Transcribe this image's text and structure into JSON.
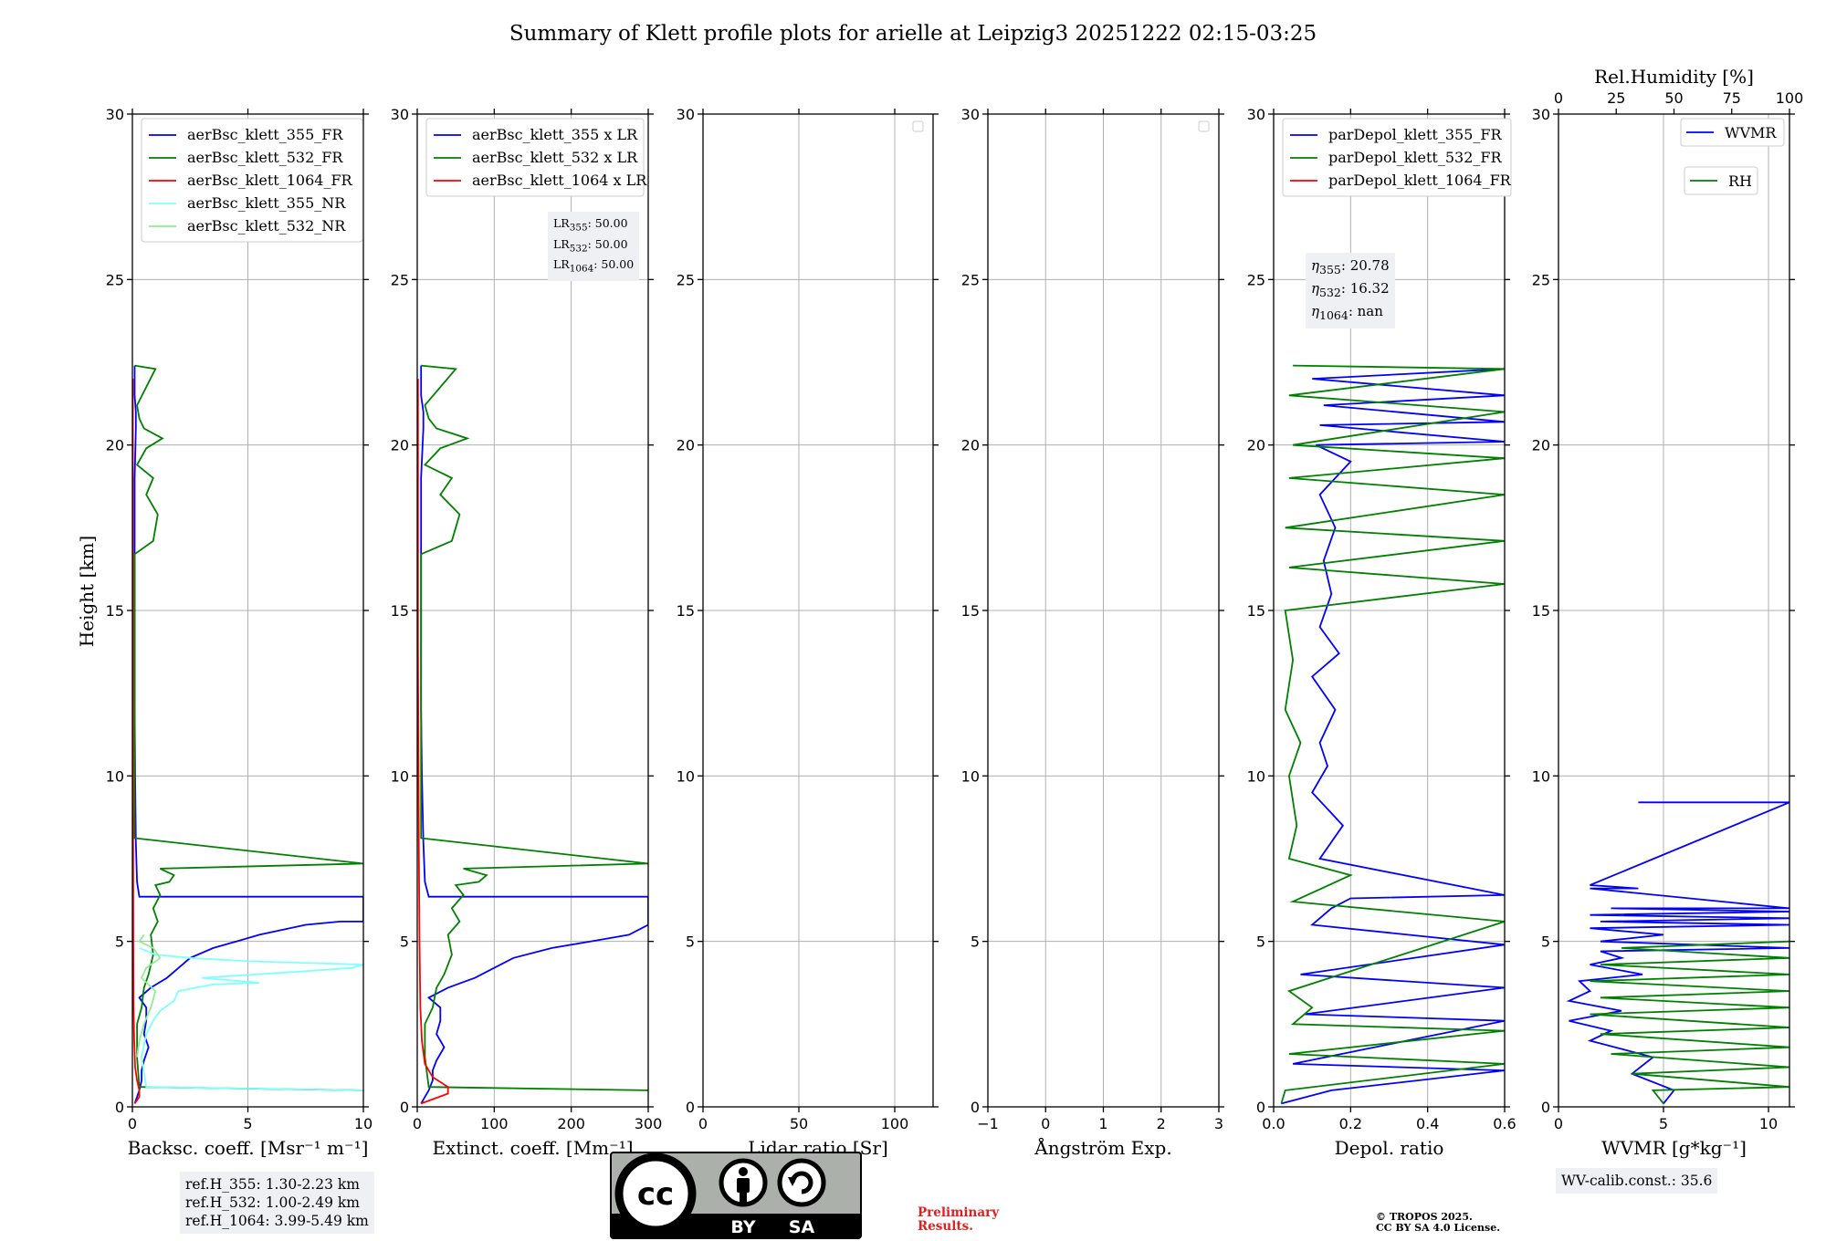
{
  "title": "Summary of Klett profile plots for arielle at Leipzig3 20251222 02:15-03:25",
  "ylabel": "Height [km]",
  "colors": {
    "blue": "#0000ff",
    "green": "#008000",
    "red": "#ff0000",
    "cyan": "#80ffff",
    "lightgreen": "#90ee90",
    "grid": "#b0b0b0",
    "note_bg": "#eef0f4",
    "prelim": "#e02020"
  },
  "chart_data": [
    {
      "type": "line",
      "id": "backscatter",
      "xlabel": "Backsc. coeff. [Msr⁻¹ m⁻¹]",
      "ylabel": "Height [km]",
      "xlim": [
        0,
        10
      ],
      "ylim": [
        0,
        30
      ],
      "xticks": [
        0,
        5,
        10
      ],
      "yticks": [
        0,
        5,
        10,
        15,
        20,
        25,
        30
      ],
      "legend": "top-left",
      "series": [
        {
          "name": "aerBsc_klett_355_FR",
          "color": "#0000ff",
          "x": [
            0.1,
            0.2,
            0.3,
            0.4,
            0.4,
            0.5,
            0.7,
            0.5,
            0.6,
            0.6,
            0.3,
            0.8,
            1.5,
            2.0,
            2.5,
            3.5,
            4.5,
            5.5,
            7.5,
            9,
            10,
            10,
            0.3,
            0.2,
            0.15,
            0.12,
            0.1,
            0.1,
            0.1,
            0.1,
            0.15,
            0.15,
            0.1,
            0.1,
            0.1
          ],
          "y": [
            0.1,
            0.3,
            0.5,
            0.8,
            1.1,
            1.4,
            1.8,
            2.2,
            2.6,
            3.0,
            3.3,
            3.6,
            3.9,
            4.2,
            4.5,
            4.8,
            5.0,
            5.2,
            5.5,
            5.6,
            5.6,
            6.35,
            6.35,
            6.8,
            8,
            10,
            12,
            15,
            17,
            19,
            20.5,
            21,
            21.5,
            22.3,
            22.4
          ]
        },
        {
          "name": "aerBsc_klett_532_FR",
          "color": "#008000",
          "x": [
            10,
            0.3,
            0.2,
            0.2,
            0.4,
            0.5,
            0.7,
            0.9,
            0.8,
            1.1,
            0.9,
            1.2,
            1.0,
            1.6,
            1.8,
            1.2,
            10,
            0.1,
            0.1,
            0.1,
            0.1,
            0.9,
            1.1,
            0.6,
            0.9,
            0.2,
            0.6,
            1.3,
            0.5,
            0.3,
            0.2,
            1.0,
            0.1
          ],
          "y": [
            0.5,
            0.6,
            1.5,
            2.5,
            3.0,
            3.6,
            4.0,
            4.6,
            5.2,
            5.6,
            6.0,
            6.4,
            6.7,
            6.8,
            7.0,
            7.2,
            7.35,
            8.12,
            10,
            14,
            16.7,
            17.1,
            17.9,
            18.5,
            19,
            19.4,
            19.9,
            20.2,
            20.5,
            20.8,
            21.2,
            22.3,
            22.4
          ]
        },
        {
          "name": "aerBsc_klett_1064_FR",
          "color": "#ff0000",
          "x": [
            0.1,
            0.3,
            0.3,
            0.2,
            0.12,
            0.08,
            0.05,
            0.04,
            0.03,
            0.02,
            0.02,
            0.02
          ],
          "y": [
            0.1,
            0.3,
            0.5,
            0.8,
            1.2,
            2,
            3,
            5,
            8,
            12,
            18,
            22
          ]
        },
        {
          "name": "aerBsc_klett_355_NR",
          "color": "#80ffff",
          "x": [
            10,
            0.6,
            0.4,
            0.6,
            0.9,
            1.2,
            1.8,
            2.0,
            3.5,
            5.5,
            3.0,
            7.5,
            9.5,
            10,
            5.0,
            2.5,
            1.0,
            0.3
          ],
          "y": [
            0.5,
            0.6,
            1.5,
            2.2,
            2.6,
            2.9,
            3.2,
            3.5,
            3.7,
            3.75,
            3.9,
            4.1,
            4.2,
            4.3,
            4.4,
            4.5,
            4.6,
            4.8
          ]
        },
        {
          "name": "aerBsc_klett_532_NR",
          "color": "#90ee90",
          "x": [
            0.2,
            0.3,
            0.5,
            0.8,
            1.0,
            0.4,
            0.6,
            1.2,
            0.9,
            0.3,
            0.5
          ],
          "y": [
            1.5,
            2.0,
            2.5,
            3.0,
            3.5,
            3.9,
            4.2,
            4.5,
            4.8,
            5.0,
            5.2
          ]
        }
      ]
    },
    {
      "type": "line",
      "id": "extinction",
      "xlabel": "Extinct. coeff. [Mm⁻¹]",
      "xlim": [
        0,
        300
      ],
      "ylim": [
        0,
        30
      ],
      "xticks": [
        0,
        100,
        200,
        300
      ],
      "yticks": [
        0,
        5,
        10,
        15,
        20,
        25,
        30
      ],
      "legend": "top-left",
      "series": [
        {
          "name": "aerBsc_klett_355 x LR",
          "color": "#0000ff",
          "x": [
            5,
            10,
            15,
            20,
            20,
            25,
            35,
            25,
            30,
            30,
            15,
            40,
            75,
            100,
            125,
            175,
            225,
            275,
            300,
            300,
            300,
            15,
            10,
            8,
            6,
            5,
            5,
            5,
            5,
            8,
            8,
            5,
            5,
            5
          ],
          "y": [
            0.1,
            0.3,
            0.5,
            0.8,
            1.1,
            1.4,
            1.8,
            2.2,
            2.6,
            3.0,
            3.3,
            3.6,
            3.9,
            4.2,
            4.5,
            4.8,
            5.0,
            5.2,
            5.5,
            5.6,
            6.35,
            6.35,
            6.8,
            8,
            10,
            12,
            15,
            17,
            19,
            20.5,
            21,
            21.5,
            22.3,
            22.4
          ]
        },
        {
          "name": "aerBsc_klett_532 x LR",
          "color": "#008000",
          "x": [
            300,
            15,
            10,
            10,
            20,
            25,
            35,
            45,
            40,
            55,
            45,
            60,
            50,
            80,
            90,
            60,
            300,
            5,
            5,
            5,
            5,
            45,
            55,
            30,
            45,
            10,
            30,
            65,
            25,
            15,
            10,
            50,
            5
          ],
          "y": [
            0.5,
            0.6,
            1.5,
            2.5,
            3.0,
            3.6,
            4.0,
            4.6,
            5.2,
            5.6,
            6.0,
            6.4,
            6.7,
            6.8,
            7.0,
            7.2,
            7.35,
            8.12,
            10,
            14,
            16.7,
            17.1,
            17.9,
            18.5,
            19,
            19.4,
            19.9,
            20.2,
            20.5,
            20.8,
            21.2,
            22.3,
            22.4
          ]
        },
        {
          "name": "aerBsc_klett_1064 x LR",
          "color": "#ff0000",
          "x": [
            5,
            40,
            40,
            20,
            10,
            6,
            4,
            3,
            2,
            1,
            1
          ],
          "y": [
            0.1,
            0.4,
            0.6,
            0.9,
            1.3,
            2,
            3,
            5,
            8,
            14,
            22
          ]
        }
      ],
      "annotation": {
        "lr_355": "50.00",
        "lr_532": "50.00",
        "lr_1064": "50.00"
      }
    },
    {
      "type": "line",
      "id": "lidar_ratio",
      "xlabel": "Lidar ratio [Sr]",
      "xlim": [
        0,
        120
      ],
      "ylim": [
        0,
        30
      ],
      "xticks": [
        0,
        50,
        100
      ],
      "yticks": [
        0,
        5,
        10,
        15,
        20,
        25,
        30
      ],
      "legend": "top-right",
      "series": []
    },
    {
      "type": "line",
      "id": "angstrom",
      "xlabel": "Ångström Exp.",
      "xlim": [
        -1,
        3
      ],
      "ylim": [
        0,
        30
      ],
      "xticks": [
        -1,
        0,
        1,
        2,
        3
      ],
      "yticks": [
        0,
        5,
        10,
        15,
        20,
        25,
        30
      ],
      "legend": "top-right",
      "series": []
    },
    {
      "type": "line",
      "id": "depol",
      "xlabel": "Depol. ratio",
      "xlim": [
        0,
        0.6
      ],
      "ylim": [
        0,
        30
      ],
      "xticks": [
        0.0,
        0.2,
        0.4,
        0.6
      ],
      "yticks": [
        0,
        5,
        10,
        15,
        20,
        25,
        30
      ],
      "legend": "top-left",
      "series": [
        {
          "name": "parDepol_klett_355_FR",
          "color": "#0000ff",
          "x": [
            0.02,
            0.15,
            0.6,
            0.05,
            0.6,
            0.08,
            0.6,
            0.07,
            0.6,
            0.1,
            0.15,
            0.2,
            0.6,
            0.12,
            0.18,
            0.1,
            0.14,
            0.12,
            0.16,
            0.1,
            0.17,
            0.12,
            0.15,
            0.13,
            0.16,
            0.12,
            0.2,
            0.11,
            0.6,
            0.12,
            0.6,
            0.13,
            0.6,
            0.1,
            0.6
          ],
          "y": [
            0.1,
            0.5,
            1.1,
            1.3,
            2.6,
            2.8,
            3.6,
            4.0,
            4.9,
            5.5,
            6.0,
            6.3,
            6.4,
            7.5,
            8.5,
            9.5,
            10.3,
            11,
            12,
            13,
            13.7,
            14.5,
            15.5,
            16.5,
            17.5,
            18.5,
            19.5,
            20,
            20.1,
            20.6,
            20.7,
            21.2,
            21.5,
            22.0,
            22.3
          ]
        },
        {
          "name": "parDepol_klett_532_FR",
          "color": "#008000",
          "x": [
            0.02,
            0.03,
            0.6,
            0.04,
            0.6,
            0.05,
            0.1,
            0.04,
            0.6,
            0.05,
            0.2,
            0.04,
            0.06,
            0.04,
            0.07,
            0.03,
            0.05,
            0.03,
            0.6,
            0.04,
            0.6,
            0.03,
            0.6,
            0.04,
            0.6,
            0.05,
            0.6,
            0.04,
            0.6,
            0.05
          ],
          "y": [
            0.1,
            0.5,
            1.3,
            1.6,
            2.3,
            2.5,
            3.0,
            3.5,
            5.6,
            6.2,
            7.0,
            7.5,
            8.5,
            10,
            11,
            12,
            13.5,
            15,
            15.8,
            16.3,
            17.1,
            17.5,
            18.5,
            19,
            19.6,
            20,
            21,
            21.5,
            22.3,
            22.4
          ]
        },
        {
          "name": "parDepol_klett_1064_FR",
          "color": "#ff0000",
          "x": [],
          "y": []
        }
      ],
      "annotation": {
        "eta_355": "20.78",
        "eta_532": "16.32",
        "eta_1064": "nan"
      }
    },
    {
      "type": "line",
      "id": "wvmr",
      "xlabel": "WVMR [g*kg⁻¹]",
      "x2label": "Rel.Humidity [%]",
      "xlim": [
        0,
        11
      ],
      "x2lim": [
        0,
        100
      ],
      "ylim": [
        0,
        30
      ],
      "xticks": [
        0,
        5,
        10
      ],
      "x2ticks": [
        0,
        25,
        50,
        75,
        100
      ],
      "yticks": [
        0,
        5,
        10,
        15,
        20,
        25,
        30
      ],
      "legend": "top-right",
      "series": [
        {
          "name": "WVMR",
          "color": "#0000ff",
          "x": [
            5,
            5.5,
            3.5,
            4.5,
            1.5,
            2.5,
            0.5,
            3,
            0.5,
            1.5,
            1,
            4,
            1.5,
            3,
            2,
            11,
            2,
            5,
            1.5,
            11,
            2,
            11,
            1.5,
            11,
            2.5,
            11,
            1.5,
            3.8,
            1.5,
            11,
            3.8,
            11
          ],
          "y": [
            0.1,
            0.5,
            1.0,
            1.5,
            2.0,
            2.3,
            2.6,
            2.9,
            3.2,
            3.5,
            3.8,
            4.0,
            4.3,
            4.5,
            4.7,
            4.8,
            5.0,
            5.2,
            5.4,
            5.5,
            5.6,
            5.7,
            5.8,
            5.9,
            6.0,
            6.0,
            6.6,
            6.6,
            6.7,
            9.2,
            9.2,
            9.2
          ]
        },
        {
          "name": "RH",
          "color": "#008000",
          "x": [
            5,
            4.5,
            11,
            3.5,
            11,
            2.5,
            11,
            2,
            11,
            1.5,
            11,
            2,
            11,
            1.5,
            11,
            2,
            11,
            3,
            11
          ],
          "y": [
            0.1,
            0.5,
            0.6,
            1.0,
            1.2,
            1.6,
            1.8,
            2.2,
            2.4,
            2.8,
            3.0,
            3.3,
            3.5,
            3.8,
            4.0,
            4.3,
            4.5,
            4.8,
            5.0
          ]
        }
      ],
      "annotation": {
        "wv_calib": "WV-calib.const.: 35.6"
      }
    }
  ],
  "notes": {
    "lr_lines": [
      "LR355: 50.00",
      "LR532: 50.00",
      "LR1064: 50.00"
    ],
    "eta_lines": [
      "η355: 20.78",
      "η532: 16.32",
      "η1064: nan"
    ],
    "ref_lines": [
      "ref.H_355: 1.30-2.23 km",
      "ref.H_532: 1.00-2.49 km",
      "ref.H_1064: 3.99-5.49 km"
    ],
    "wv_calib": "WV-calib.const.: 35.6",
    "preliminary": [
      "Preliminary",
      "Results."
    ],
    "copyright": [
      "© TROPOS 2025.",
      "CC BY SA 4.0 License."
    ]
  },
  "license_badge": {
    "cc": "cc",
    "by": "BY",
    "sa": "SA"
  }
}
